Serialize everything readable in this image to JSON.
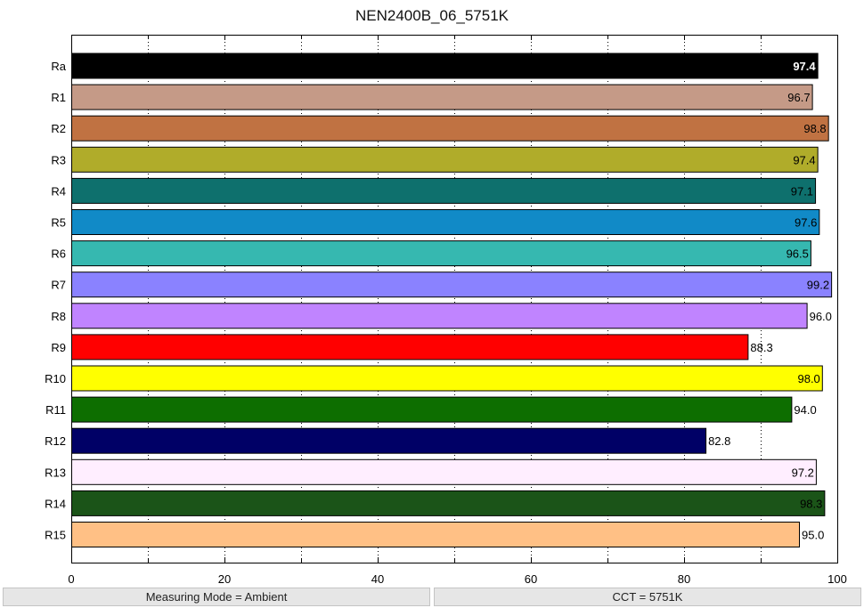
{
  "chart_data": {
    "type": "bar",
    "orientation": "horizontal",
    "title": "NEN2400B_06_5751K",
    "xlabel": "",
    "ylabel": "",
    "xlim": [
      0,
      100
    ],
    "x_ticks": [
      0,
      20,
      40,
      60,
      80,
      100
    ],
    "grid": "vertical dotted",
    "categories": [
      "Ra",
      "R1",
      "R2",
      "R3",
      "R4",
      "R5",
      "R6",
      "R7",
      "R8",
      "R9",
      "R10",
      "R11",
      "R12",
      "R13",
      "R14",
      "R15"
    ],
    "values": [
      97.4,
      96.7,
      98.8,
      97.4,
      97.1,
      97.6,
      96.5,
      99.2,
      96.0,
      88.3,
      98.0,
      94.0,
      82.8,
      97.2,
      98.3,
      95.0
    ],
    "value_labels": [
      "97.4",
      "96.7",
      "98.8",
      "97.4",
      "97.1",
      "97.6",
      "96.5",
      "99.2",
      "96.0",
      "88.3",
      "98.0",
      "94.0",
      "82.8",
      "97.2",
      "98.3",
      "95.0"
    ],
    "colors": [
      "#000000",
      "#c59a87",
      "#c07242",
      "#b0ac2a",
      "#0e706d",
      "#118ac7",
      "#36b8b0",
      "#8a82ff",
      "#c084ff",
      "#ff0000",
      "#ffff00",
      "#0d6e00",
      "#000066",
      "#ffeeff",
      "#1b5418",
      "#ffc085"
    ],
    "label_colors": [
      "#ffffff",
      "#000000",
      "#000000",
      "#000000",
      "#000000",
      "#000000",
      "#000000",
      "#000000",
      "#000000",
      "#000000",
      "#000000",
      "#000000",
      "#000000",
      "#000000",
      "#000000",
      "#000000"
    ]
  },
  "status": {
    "left": "Measuring Mode = Ambient",
    "right": "CCT = 5751K"
  }
}
